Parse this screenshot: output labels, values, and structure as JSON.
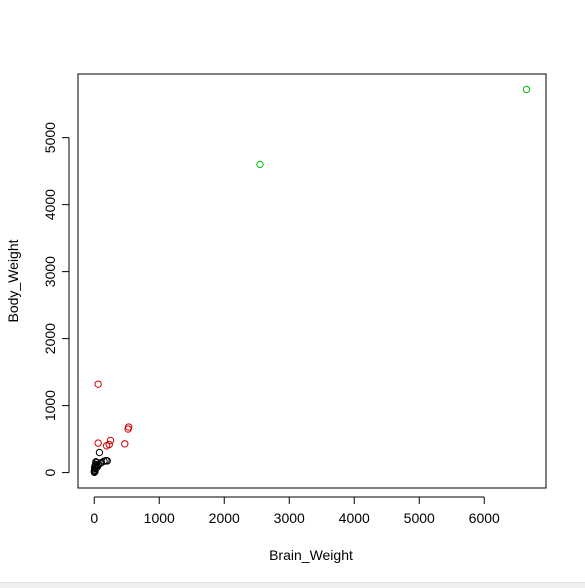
{
  "chart_data": {
    "type": "scatter",
    "title": "",
    "xlabel": "Brain_Weight",
    "ylabel": "Body_Weight",
    "xlim": [
      -250,
      6950
    ],
    "ylim": [
      -230,
      5950
    ],
    "xticks": [
      0,
      1000,
      2000,
      3000,
      4000,
      5000,
      6000
    ],
    "yticks": [
      0,
      1000,
      2000,
      3000,
      4000,
      5000
    ],
    "grid": false,
    "legend": "none",
    "marker": "open-circle",
    "series": [
      {
        "color": "#000000",
        "points": [
          [
            2,
            5
          ],
          [
            5,
            10
          ],
          [
            3,
            25
          ],
          [
            8,
            40
          ],
          [
            12,
            60
          ],
          [
            6,
            80
          ],
          [
            15,
            100
          ],
          [
            20,
            120
          ],
          [
            25,
            160
          ],
          [
            40,
            150
          ],
          [
            60,
            120
          ],
          [
            90,
            140
          ],
          [
            110,
            150
          ],
          [
            150,
            170
          ],
          [
            180,
            180
          ],
          [
            200,
            175
          ],
          [
            80,
            300
          ],
          [
            10,
            15
          ],
          [
            30,
            70
          ],
          [
            50,
            90
          ]
        ]
      },
      {
        "color": "#cc0000",
        "points": [
          [
            60,
            1320
          ],
          [
            60,
            440
          ],
          [
            190,
            400
          ],
          [
            230,
            420
          ],
          [
            250,
            480
          ],
          [
            470,
            430
          ],
          [
            520,
            650
          ],
          [
            530,
            680
          ]
        ]
      },
      {
        "color": "#00bb00",
        "points": [
          [
            2550,
            4600
          ],
          [
            6650,
            5720
          ]
        ]
      }
    ]
  }
}
